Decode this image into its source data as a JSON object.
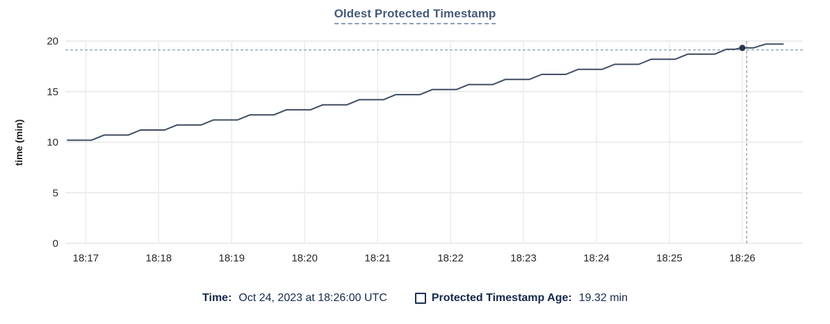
{
  "title": "Oldest Protected Timestamp",
  "legend": {
    "time_label": "Time:",
    "time_value": "Oct 24, 2023 at 18:26:00 UTC",
    "series_label": "Protected Timestamp Age:",
    "series_value": "19.32 min"
  },
  "colors": {
    "title": "#46597a",
    "title_underline": "#8a9cba",
    "series_line": "#3f4c63",
    "hover_dot": "#26344c",
    "crosshair": "#9aabba",
    "grid": "#ececec",
    "tick_text": "#26282b",
    "axis_label_text": "#1a1c1e",
    "legend_text": "#15294d",
    "background": "#ffffff"
  },
  "chart_data": {
    "type": "line",
    "title": "Oldest Protected Timestamp",
    "xlabel": "",
    "ylabel": "time (min)",
    "ylim": [
      0,
      20
    ],
    "y_ticks": [
      0,
      5,
      10,
      15,
      20
    ],
    "grid": true,
    "legend_position": "bottom",
    "x_axis": {
      "tick_labels": [
        "18:17",
        "18:18",
        "18:19",
        "18:20",
        "18:21",
        "18:22",
        "18:23",
        "18:24",
        "18:25",
        "18:26"
      ],
      "tick_minutes": [
        0,
        1,
        2,
        3,
        4,
        5,
        6,
        7,
        8,
        9
      ],
      "domain_minutes": [
        -0.28,
        9.83
      ]
    },
    "series": [
      {
        "name": "Protected Timestamp Age",
        "unit": "min",
        "points": [
          [
            -0.25,
            10.2
          ],
          [
            0.08,
            10.2
          ],
          [
            0.25,
            10.7
          ],
          [
            0.58,
            10.7
          ],
          [
            0.75,
            11.2
          ],
          [
            1.08,
            11.2
          ],
          [
            1.25,
            11.7
          ],
          [
            1.58,
            11.7
          ],
          [
            1.75,
            12.2
          ],
          [
            2.08,
            12.2
          ],
          [
            2.25,
            12.7
          ],
          [
            2.58,
            12.7
          ],
          [
            2.75,
            13.2
          ],
          [
            3.08,
            13.2
          ],
          [
            3.25,
            13.7
          ],
          [
            3.58,
            13.7
          ],
          [
            3.75,
            14.2
          ],
          [
            4.08,
            14.2
          ],
          [
            4.25,
            14.7
          ],
          [
            4.58,
            14.7
          ],
          [
            4.75,
            15.2
          ],
          [
            5.08,
            15.2
          ],
          [
            5.25,
            15.7
          ],
          [
            5.58,
            15.7
          ],
          [
            5.75,
            16.2
          ],
          [
            6.08,
            16.2
          ],
          [
            6.25,
            16.7
          ],
          [
            6.58,
            16.7
          ],
          [
            6.75,
            17.2
          ],
          [
            7.08,
            17.2
          ],
          [
            7.25,
            17.7
          ],
          [
            7.58,
            17.7
          ],
          [
            7.75,
            18.2
          ],
          [
            8.08,
            18.2
          ],
          [
            8.25,
            18.7
          ],
          [
            8.62,
            18.7
          ],
          [
            8.78,
            19.18
          ],
          [
            8.9,
            19.18
          ],
          [
            8.98,
            19.32
          ],
          [
            9.15,
            19.32
          ],
          [
            9.32,
            19.7
          ],
          [
            9.56,
            19.7
          ]
        ]
      }
    ],
    "hover": {
      "time": "18:26:00",
      "point_minutes": 9.0,
      "point_value": 19.32,
      "crosshair_minutes": 9.06,
      "crosshair_value": 19.12,
      "value_label": "19.32 min"
    }
  }
}
